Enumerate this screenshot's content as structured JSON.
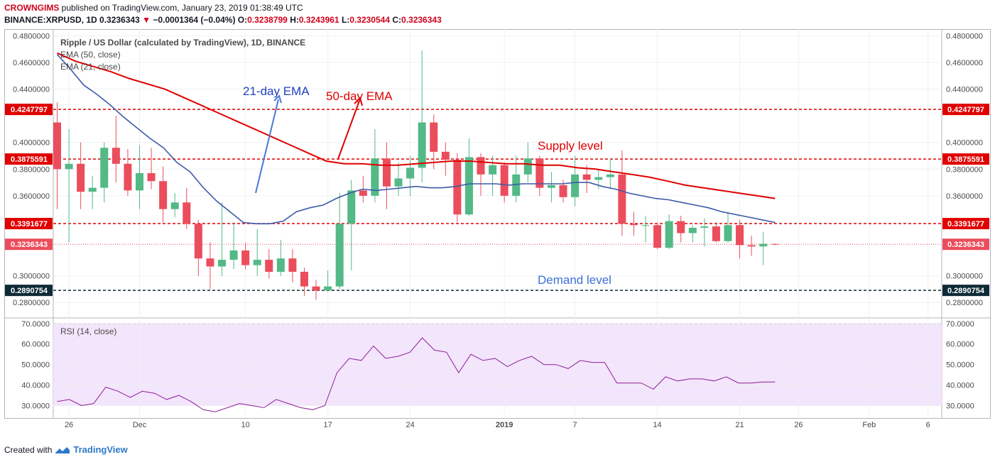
{
  "header": {
    "author": "CROWNGIMS",
    "published_text": "published on TradingView.com, January 23, 2019 01:38:49 UTC",
    "symbol": "BINANCE:XRPUSD, 1D",
    "price": "0.3236343",
    "change_arrow": "▼",
    "change": "−0.0001364 (−0.04%)",
    "o_label": "O:",
    "o": "0.3238799",
    "h_label": "H:",
    "h": "0.3243961",
    "l_label": "L:",
    "l": "0.3230544",
    "c_label": "C:",
    "c": "0.3236343"
  },
  "legend": {
    "title": "Ripple / US Dollar (calculated by TradingView), 1D, BINANCE",
    "ema50": "EMA (50, close)",
    "ema21": "EMA (21, close)",
    "rsi": "RSI (14, close)"
  },
  "annotations": {
    "ema21": "21-day EMA",
    "ema50": "50-day EMA",
    "supply": "Supply level",
    "demand": "Demand level"
  },
  "footer": {
    "created_with": "Created with",
    "brand": "TradingView"
  },
  "colors": {
    "up": "#53b987",
    "down": "#eb4d5c",
    "ema50": "#e00000",
    "ema21": "#3c5aa8",
    "rsi": "#8e1e9a",
    "rsi_band": "#f3e5fb"
  },
  "chart_data": {
    "type": "candlestick",
    "x_ticks": [
      "26",
      "Dec",
      "10",
      "17",
      "24",
      "2019",
      "7",
      "14",
      "21",
      "26",
      "Feb",
      "6"
    ],
    "price_ticks": [
      "0.4800000",
      "0.4600000",
      "0.4400000",
      "0.4000000",
      "0.3800000",
      "0.3600000",
      "0.3000000",
      "0.2800000"
    ],
    "price_range": [
      0.27,
      0.485
    ],
    "levels": [
      {
        "label": "0.4247797",
        "value": 0.4247797,
        "style": "red"
      },
      {
        "label": "0.3875591",
        "value": 0.3875591,
        "style": "red"
      },
      {
        "label": "0.3391677",
        "value": 0.3391677,
        "style": "red"
      },
      {
        "label": "0.3236343",
        "value": 0.3236343,
        "style": "price"
      },
      {
        "label": "0.2890754",
        "value": 0.2890754,
        "style": "dark"
      }
    ],
    "candles": [
      [
        0.415,
        0.43,
        0.35,
        0.38
      ],
      [
        0.38,
        0.41,
        0.325,
        0.384
      ],
      [
        0.384,
        0.4,
        0.35,
        0.363
      ],
      [
        0.363,
        0.375,
        0.35,
        0.366
      ],
      [
        0.366,
        0.4,
        0.355,
        0.396
      ],
      [
        0.396,
        0.42,
        0.37,
        0.384
      ],
      [
        0.384,
        0.395,
        0.36,
        0.364
      ],
      [
        0.364,
        0.398,
        0.35,
        0.377
      ],
      [
        0.377,
        0.396,
        0.365,
        0.371
      ],
      [
        0.371,
        0.382,
        0.34,
        0.35
      ],
      [
        0.35,
        0.362,
        0.344,
        0.355
      ],
      [
        0.355,
        0.366,
        0.335,
        0.339
      ],
      [
        0.339,
        0.342,
        0.3,
        0.313
      ],
      [
        0.313,
        0.325,
        0.29,
        0.307
      ],
      [
        0.307,
        0.355,
        0.3,
        0.312
      ],
      [
        0.312,
        0.339,
        0.305,
        0.319
      ],
      [
        0.319,
        0.325,
        0.305,
        0.308
      ],
      [
        0.308,
        0.335,
        0.3,
        0.312
      ],
      [
        0.312,
        0.32,
        0.298,
        0.303
      ],
      [
        0.303,
        0.327,
        0.3,
        0.313
      ],
      [
        0.313,
        0.32,
        0.295,
        0.303
      ],
      [
        0.303,
        0.306,
        0.285,
        0.292
      ],
      [
        0.292,
        0.297,
        0.282,
        0.289
      ],
      [
        0.289,
        0.304,
        0.288,
        0.292
      ],
      [
        0.292,
        0.362,
        0.29,
        0.339
      ],
      [
        0.339,
        0.372,
        0.304,
        0.364
      ],
      [
        0.364,
        0.375,
        0.355,
        0.36
      ],
      [
        0.36,
        0.41,
        0.355,
        0.388
      ],
      [
        0.388,
        0.4,
        0.35,
        0.367
      ],
      [
        0.367,
        0.385,
        0.36,
        0.373
      ],
      [
        0.373,
        0.39,
        0.36,
        0.381
      ],
      [
        0.381,
        0.469,
        0.37,
        0.415
      ],
      [
        0.415,
        0.421,
        0.38,
        0.393
      ],
      [
        0.393,
        0.4,
        0.375,
        0.387
      ],
      [
        0.387,
        0.392,
        0.34,
        0.346
      ],
      [
        0.346,
        0.403,
        0.345,
        0.389
      ],
      [
        0.389,
        0.392,
        0.36,
        0.376
      ],
      [
        0.376,
        0.39,
        0.36,
        0.383
      ],
      [
        0.383,
        0.385,
        0.355,
        0.36
      ],
      [
        0.36,
        0.39,
        0.355,
        0.376
      ],
      [
        0.376,
        0.4,
        0.37,
        0.388
      ],
      [
        0.388,
        0.39,
        0.36,
        0.366
      ],
      [
        0.366,
        0.378,
        0.355,
        0.368
      ],
      [
        0.368,
        0.372,
        0.355,
        0.359
      ],
      [
        0.359,
        0.39,
        0.352,
        0.376
      ],
      [
        0.376,
        0.383,
        0.362,
        0.372
      ],
      [
        0.372,
        0.38,
        0.365,
        0.374
      ],
      [
        0.374,
        0.388,
        0.365,
        0.376
      ],
      [
        0.376,
        0.394,
        0.33,
        0.339
      ],
      [
        0.339,
        0.348,
        0.33,
        0.338
      ],
      [
        0.338,
        0.345,
        0.325,
        0.338
      ],
      [
        0.338,
        0.34,
        0.32,
        0.321
      ],
      [
        0.321,
        0.346,
        0.32,
        0.341
      ],
      [
        0.341,
        0.345,
        0.325,
        0.332
      ],
      [
        0.332,
        0.338,
        0.325,
        0.336
      ],
      [
        0.336,
        0.343,
        0.322,
        0.337
      ],
      [
        0.337,
        0.34,
        0.325,
        0.326
      ],
      [
        0.326,
        0.348,
        0.325,
        0.338
      ],
      [
        0.338,
        0.342,
        0.313,
        0.323
      ],
      [
        0.323,
        0.33,
        0.315,
        0.322
      ],
      [
        0.322,
        0.333,
        0.308,
        0.324
      ],
      [
        0.3238799,
        0.3243961,
        0.3230544,
        0.3236343
      ]
    ],
    "ema21": [
      0.466,
      0.455,
      0.443,
      0.436,
      0.428,
      0.419,
      0.411,
      0.403,
      0.396,
      0.385,
      0.378,
      0.366,
      0.356,
      0.348,
      0.34,
      0.339,
      0.339,
      0.341,
      0.348,
      0.351,
      0.353,
      0.358,
      0.362,
      0.365,
      0.364,
      0.365,
      0.366,
      0.367,
      0.366,
      0.366,
      0.367,
      0.369,
      0.369,
      0.369,
      0.368,
      0.369,
      0.369,
      0.369,
      0.369,
      0.37,
      0.37,
      0.367,
      0.365,
      0.362,
      0.36,
      0.358,
      0.357,
      0.355,
      0.353,
      0.351,
      0.348,
      0.346,
      0.344,
      0.342,
      0.34
    ],
    "ema21_start": 0,
    "ema50": [
      0.467,
      0.461,
      0.457,
      0.453,
      0.448,
      0.444,
      0.44,
      0.434,
      0.428,
      0.422,
      0.416,
      0.41,
      0.404,
      0.398,
      0.392,
      0.386,
      0.384,
      0.384,
      0.383,
      0.383,
      0.384,
      0.385,
      0.386,
      0.386,
      0.385,
      0.384,
      0.384,
      0.383,
      0.383,
      0.381,
      0.38,
      0.378,
      0.376,
      0.374,
      0.371,
      0.368,
      0.366,
      0.364,
      0.362,
      0.36,
      0.358
    ],
    "rsi_range": [
      25,
      72
    ],
    "rsi_ticks": [
      "70.0000",
      "60.0000",
      "50.0000",
      "40.0000",
      "30.0000"
    ],
    "rsi": [
      32,
      33,
      30,
      31,
      39,
      37,
      34,
      37,
      36,
      33,
      35,
      32,
      28,
      27,
      29,
      31,
      30,
      29,
      33,
      31,
      29,
      28,
      30,
      46,
      53,
      52,
      59,
      53,
      54,
      56,
      63,
      57,
      56,
      46,
      55,
      52,
      53,
      49,
      52,
      54,
      50,
      50,
      48,
      52,
      51,
      51,
      41,
      41,
      41,
      38,
      44,
      42,
      43,
      43,
      42,
      44,
      41,
      41,
      41.5,
      41.5
    ]
  }
}
